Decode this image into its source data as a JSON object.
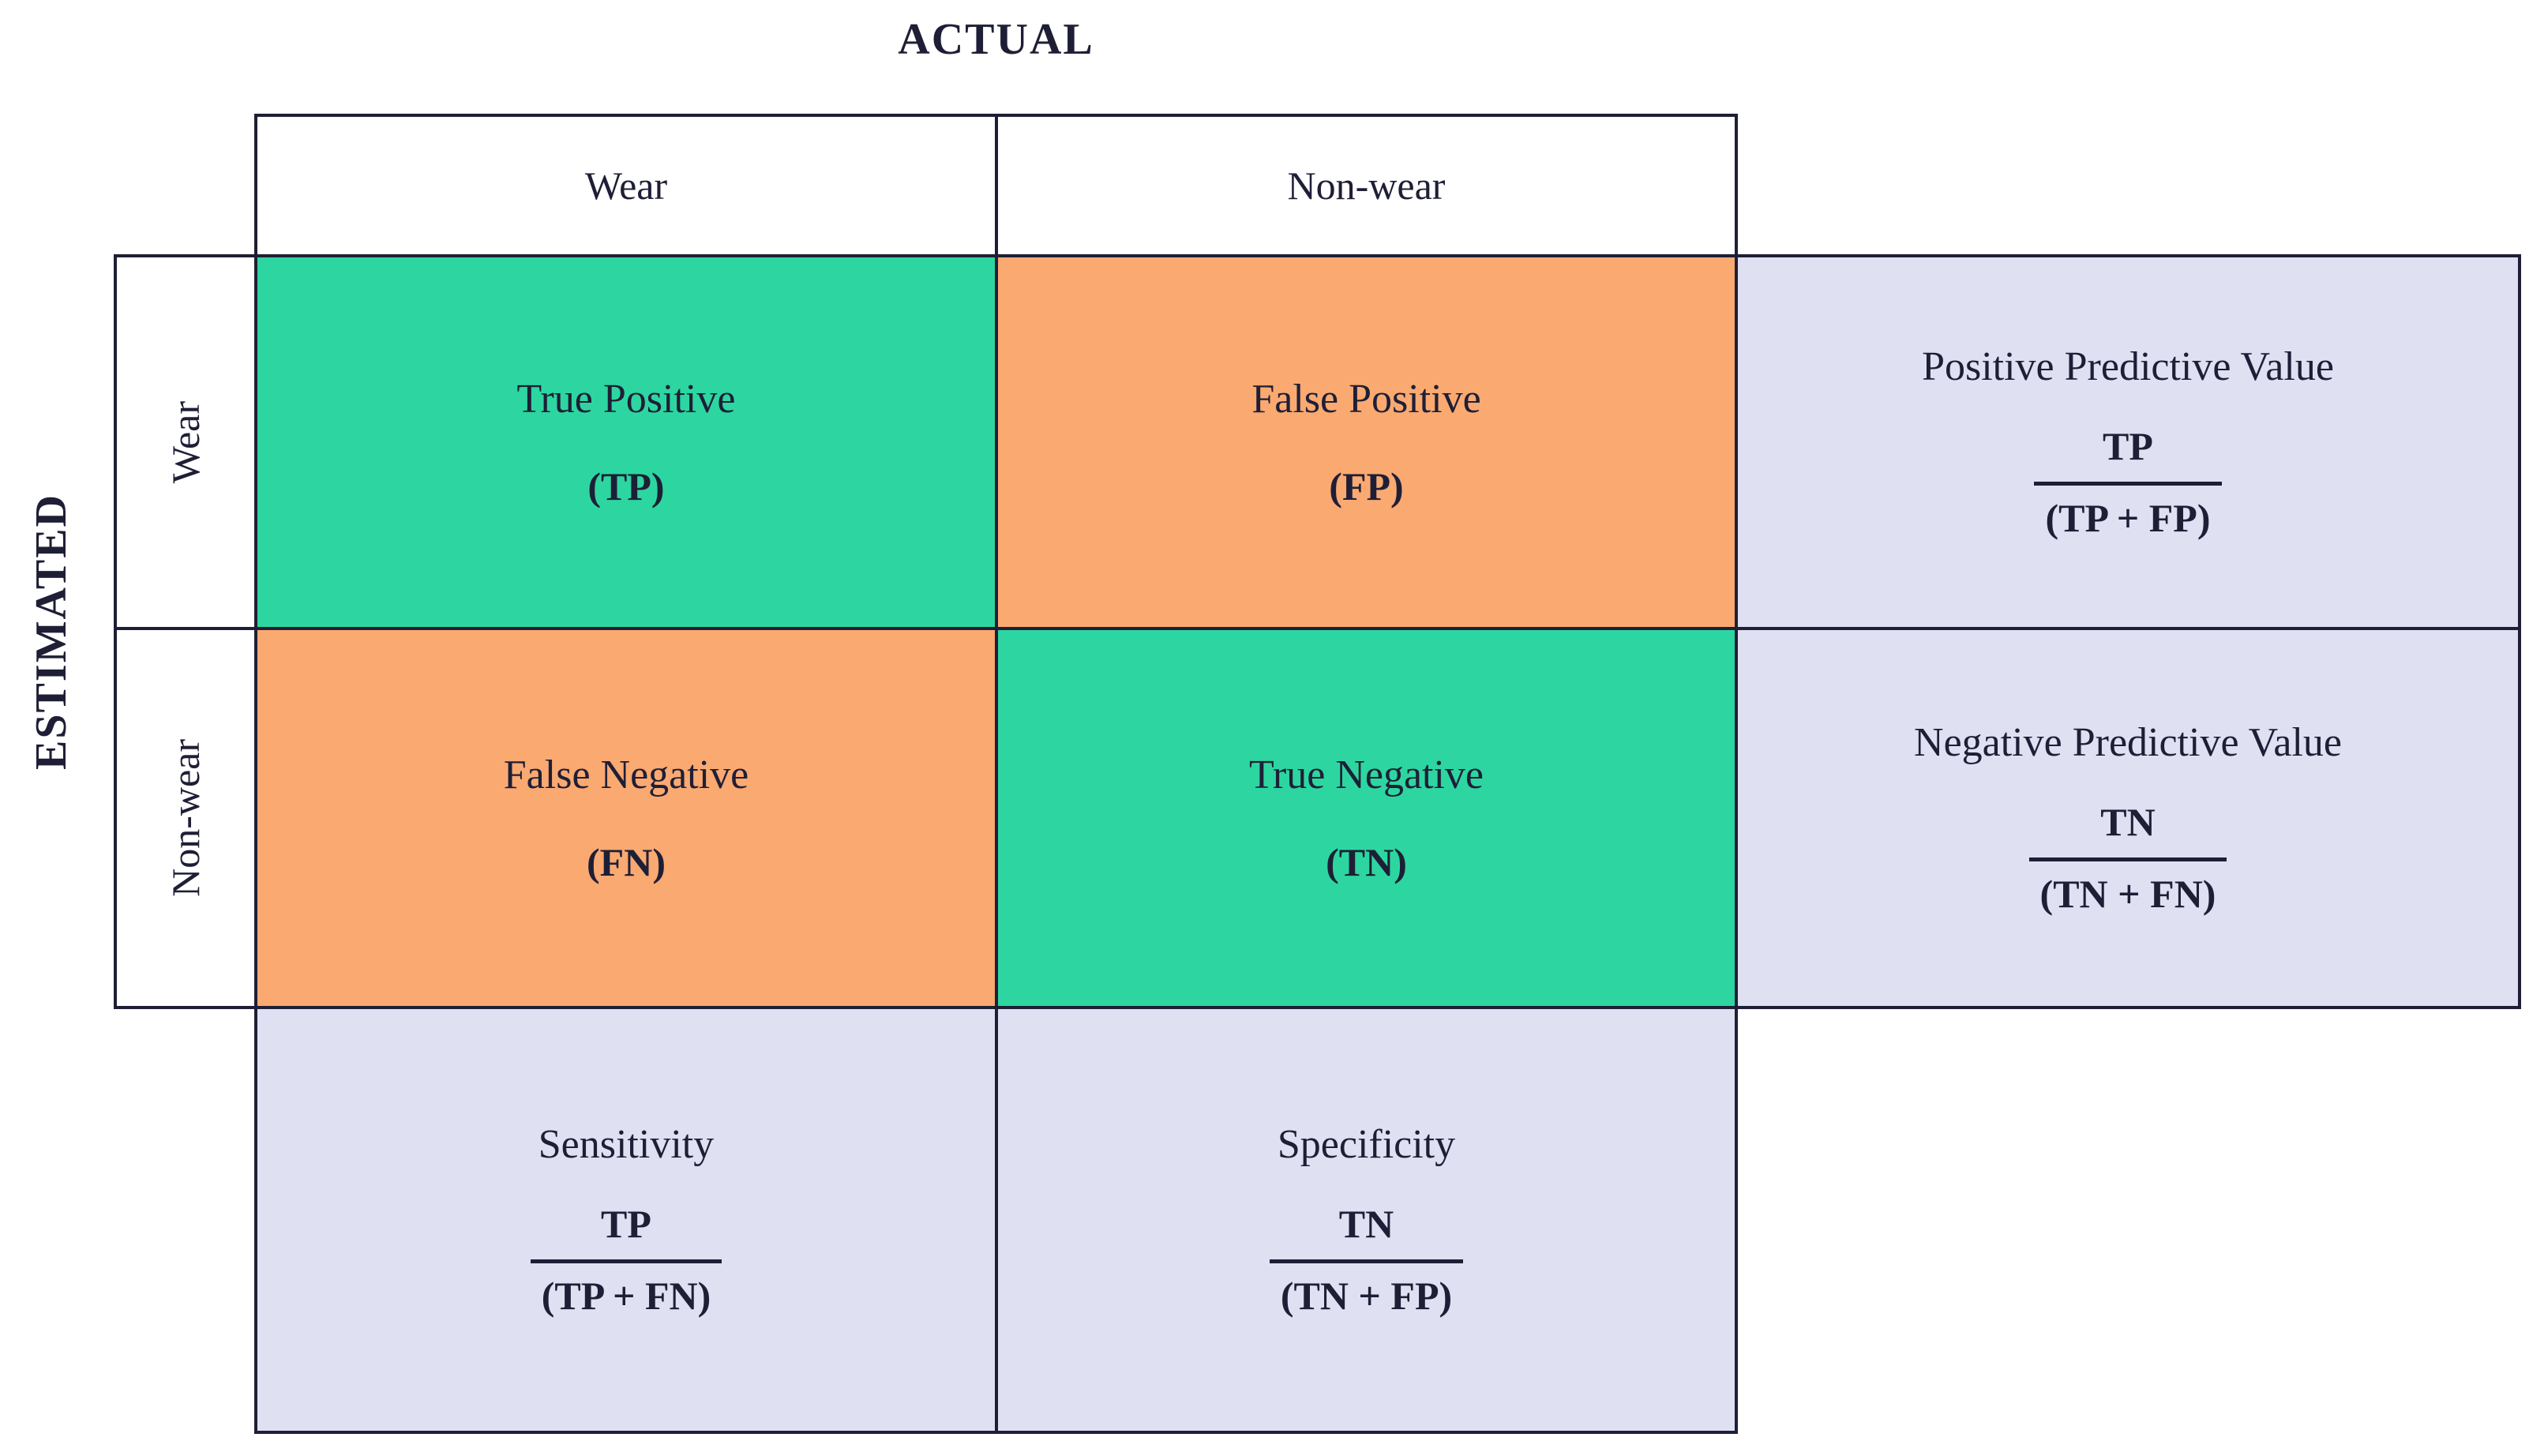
{
  "diagram": {
    "axis_top_title": "ACTUAL",
    "axis_left_title": "ESTIMATED",
    "column_headers": [
      "Wear",
      "Non-wear"
    ],
    "row_headers": [
      "Wear",
      "Non-wear"
    ],
    "cells": {
      "tp": {
        "label": "True Positive",
        "abbr": "(TP)"
      },
      "fp": {
        "label": "False Positive",
        "abbr": "(FP)"
      },
      "fn": {
        "label": "False Negative",
        "abbr": "(FN)"
      },
      "tn": {
        "label": "True Negative",
        "abbr": "(TN)"
      }
    },
    "metrics": {
      "ppv": {
        "label": "Positive Predictive Value",
        "numerator": "TP",
        "denominator": "(TP + FP)"
      },
      "npv": {
        "label": "Negative Predictive Value",
        "numerator": "TN",
        "denominator": "(TN + FN)"
      },
      "sensitivity": {
        "label": "Sensitivity",
        "numerator": "TP",
        "denominator": "(TP + FN)"
      },
      "specificity": {
        "label": "Specificity",
        "numerator": "TN",
        "denominator": "(TN + FP)"
      }
    },
    "colors": {
      "true_cell": "#2dd6a0",
      "false_cell": "#faa971",
      "metric_cell": "#dfe0f2",
      "ink": "#1e1f36"
    }
  }
}
